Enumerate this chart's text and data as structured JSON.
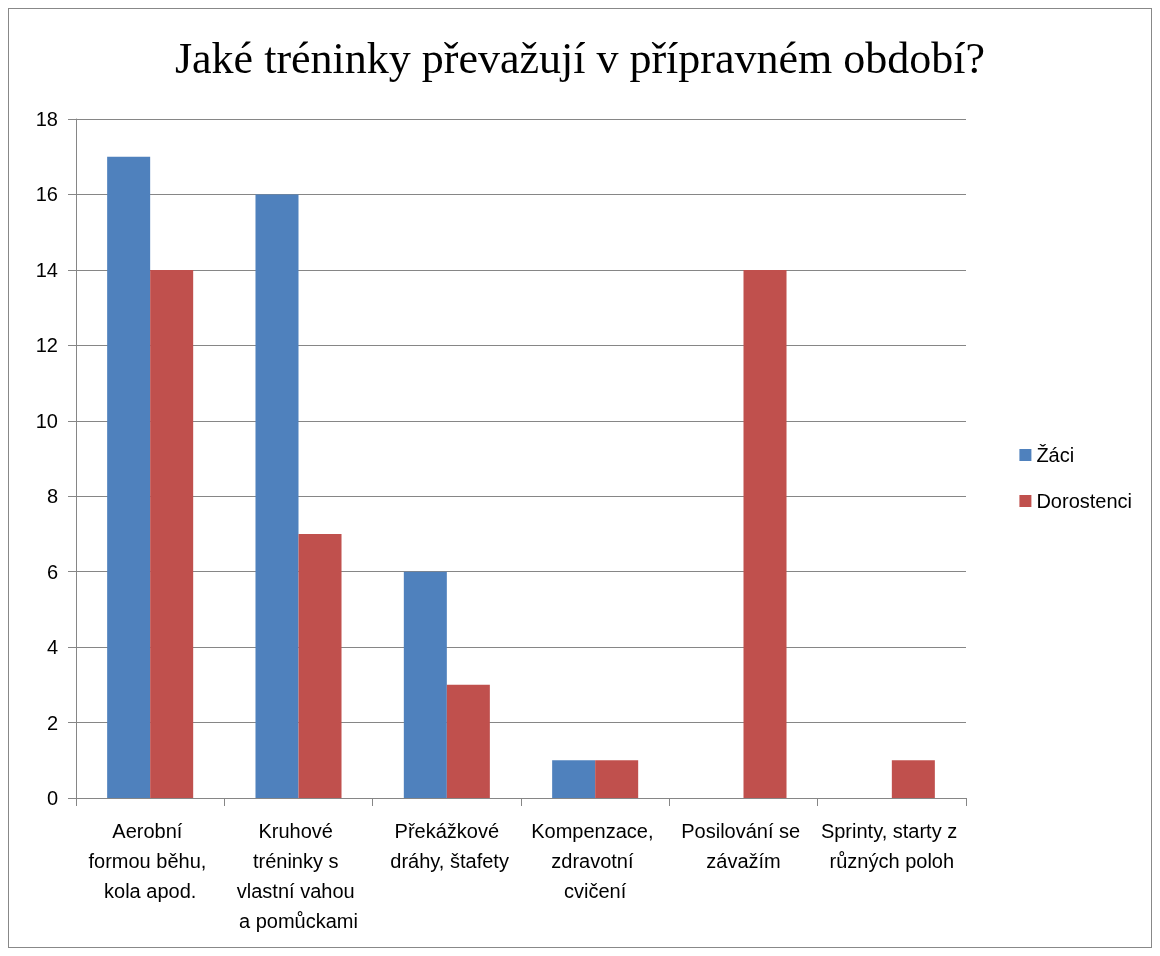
{
  "chart_data": {
    "type": "bar",
    "title": "Jaké tréninky převažují v přípravném období?",
    "categories": [
      "Aerobní formou běhu, kola apod.",
      "Kruhové tréninky s vlastní vahou a pomůckami",
      "Překážkové dráhy, štafety",
      "Kompenzace, zdravotní cvičení",
      "Posilování se závažím",
      "Sprinty, starty z různých poloh"
    ],
    "series": [
      {
        "name": "Žáci",
        "color": "#4f81bd",
        "values": [
          17,
          16,
          6,
          1,
          0,
          0
        ]
      },
      {
        "name": "Dorostenci",
        "color": "#c0504d",
        "values": [
          14,
          7,
          3,
          1,
          14,
          1
        ]
      }
    ],
    "ylim": [
      0,
      18
    ],
    "yticks": [
      0,
      2,
      4,
      6,
      8,
      10,
      12,
      14,
      16,
      18
    ],
    "grid": "y",
    "legend": "right"
  }
}
